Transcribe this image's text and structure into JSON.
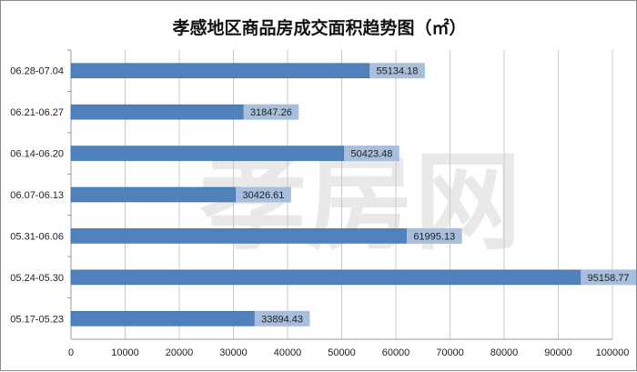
{
  "chart_data": {
    "type": "bar",
    "orientation": "horizontal",
    "title": "孝感地区商品房成交面积趋势图（㎡）",
    "categories": [
      "06.28-07.04",
      "06.21-06.27",
      "06.14-06.20",
      "06.07-06.13",
      "05.31-06.06",
      "05.24-05.30",
      "05.17-05.23"
    ],
    "values": [
      55134.18,
      31847.26,
      50423.48,
      30426.61,
      61995.13,
      95158.77,
      33894.43
    ],
    "value_labels": [
      "55134.18",
      "31847.26",
      "50423.48",
      "30426.61",
      "61995.13",
      "95158.77",
      "33894.43"
    ],
    "xlim": [
      0,
      100000
    ],
    "xticks": [
      "0",
      "10000",
      "20000",
      "30000",
      "40000",
      "50000",
      "60000",
      "70000",
      "80000",
      "90000",
      "100000"
    ],
    "grid": true,
    "colors": {
      "bar": "#4f81bd",
      "bar_edge": "#3a6aa3",
      "label_box": "#a7bfdc",
      "grid": "#c8c8c8",
      "axis": "#9a9a9a"
    }
  },
  "watermark": {
    "text": "孝房网",
    "color": "#d8d8d8"
  }
}
